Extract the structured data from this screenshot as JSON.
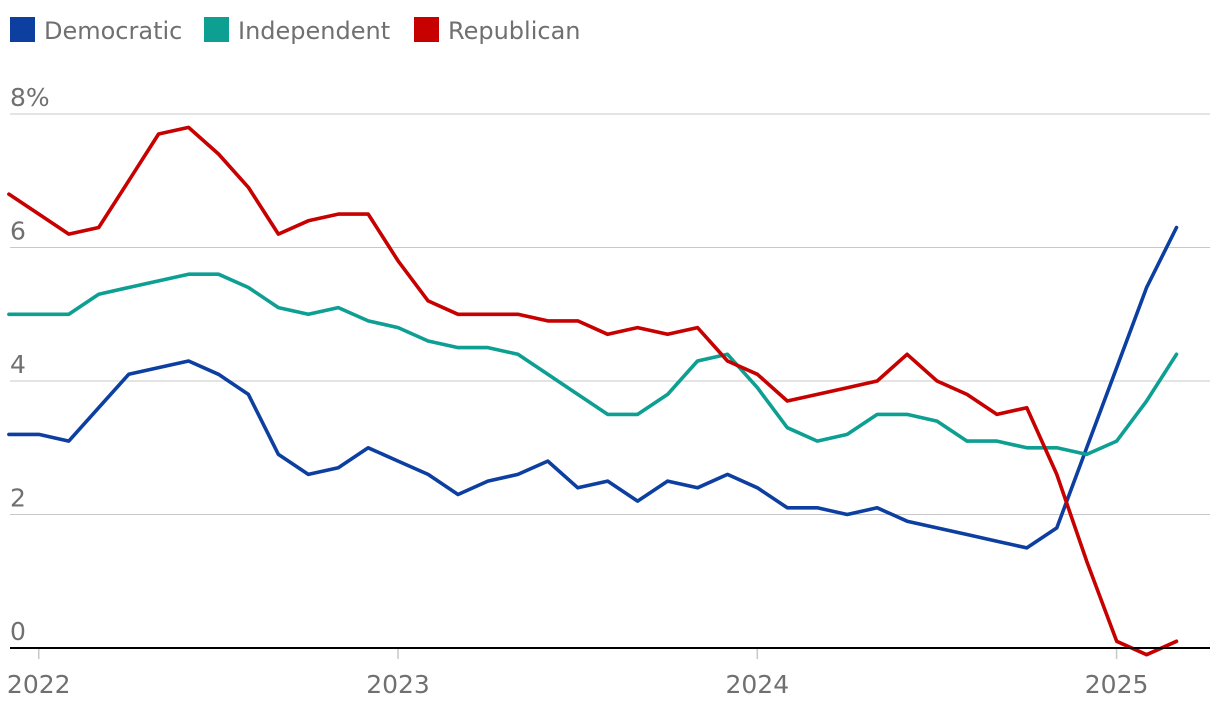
{
  "chart_data": {
    "type": "line",
    "title": "",
    "xlabel": "",
    "ylabel": "",
    "ylim": [
      0,
      8
    ],
    "xlim": [
      2021.92,
      2025.26
    ],
    "y_ticks": [
      {
        "value": 0,
        "label": "0"
      },
      {
        "value": 2,
        "label": "2"
      },
      {
        "value": 4,
        "label": "4"
      },
      {
        "value": 6,
        "label": "6"
      },
      {
        "value": 8,
        "label": "8%"
      }
    ],
    "x_ticks": [
      {
        "value": 2022,
        "label": "2022"
      },
      {
        "value": 2023,
        "label": "2023"
      },
      {
        "value": 2024,
        "label": "2024"
      },
      {
        "value": 2025,
        "label": "2025"
      }
    ],
    "grid": true,
    "legend_position": "top-left",
    "x_start": 2021.917,
    "x_step": 0.08333,
    "series": [
      {
        "name": "Democratic",
        "color": "#0d3fa1",
        "values": [
          3.2,
          3.2,
          3.1,
          3.6,
          4.1,
          4.2,
          4.3,
          4.1,
          3.8,
          2.9,
          2.6,
          2.7,
          3.0,
          2.8,
          2.6,
          2.3,
          2.5,
          2.6,
          2.8,
          2.4,
          2.5,
          2.2,
          2.5,
          2.4,
          2.6,
          2.4,
          2.1,
          2.1,
          2.0,
          2.1,
          1.9,
          1.8,
          1.7,
          1.6,
          1.5,
          1.8,
          3.0,
          4.2,
          5.4,
          6.3
        ]
      },
      {
        "name": "Independent",
        "color": "#0e9f93",
        "values": [
          5.0,
          5.0,
          5.0,
          5.3,
          5.4,
          5.5,
          5.6,
          5.6,
          5.4,
          5.1,
          5.0,
          5.1,
          4.9,
          4.8,
          4.6,
          4.5,
          4.5,
          4.4,
          4.1,
          3.8,
          3.5,
          3.5,
          3.8,
          4.3,
          4.4,
          3.9,
          3.3,
          3.1,
          3.2,
          3.5,
          3.5,
          3.4,
          3.1,
          3.1,
          3.0,
          3.0,
          2.9,
          3.1,
          3.7,
          4.4
        ]
      },
      {
        "name": "Republican",
        "color": "#c70000",
        "values": [
          6.8,
          6.5,
          6.2,
          6.3,
          7.0,
          7.7,
          7.8,
          7.4,
          6.9,
          6.2,
          6.4,
          6.5,
          6.5,
          5.8,
          5.2,
          5.0,
          5.0,
          5.0,
          4.9,
          4.9,
          4.7,
          4.8,
          4.7,
          4.8,
          4.3,
          4.1,
          3.7,
          3.8,
          3.9,
          4.0,
          4.4,
          4.0,
          3.8,
          3.5,
          3.6,
          2.6,
          1.3,
          0.1,
          -0.1,
          0.1
        ]
      }
    ]
  }
}
